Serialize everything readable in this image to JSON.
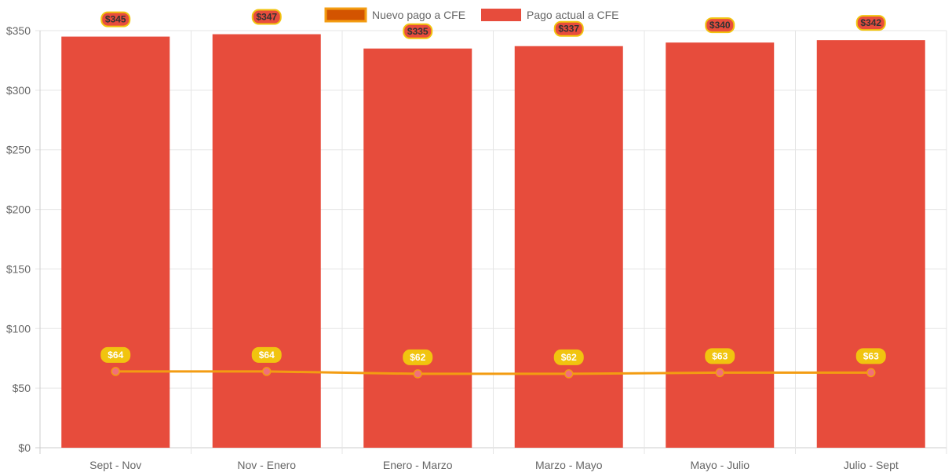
{
  "chart_data": {
    "type": "bar",
    "title": "",
    "categories": [
      "Sept - Nov",
      "Nov - Enero",
      "Enero - Marzo",
      "Marzo - Mayo",
      "Mayo - Julio",
      "Julio - Sept"
    ],
    "series": [
      {
        "name": "Nuevo pago a CFE",
        "type": "line",
        "values": [
          64,
          64,
          62,
          62,
          63,
          63
        ],
        "labels": [
          "$64",
          "$64",
          "$62",
          "$62",
          "$63",
          "$63"
        ],
        "color": "#f39c12",
        "fill": "#d35400",
        "point_color": "#f1707a",
        "label_bg": "#f1c40f"
      },
      {
        "name": "Pago actual a CFE",
        "type": "bar",
        "values": [
          345,
          347,
          335,
          337,
          340,
          342
        ],
        "labels": [
          "$345",
          "$347",
          "$335",
          "$337",
          "$340",
          "$342"
        ],
        "color": "#e74c3c",
        "label_bg": "#e74c3c",
        "label_border": "#f1c40f"
      }
    ],
    "yticks": [
      "$0",
      "$50",
      "$100",
      "$150",
      "$200",
      "$250",
      "$300",
      "$350"
    ],
    "ylim": [
      0,
      350
    ],
    "legend": "top",
    "grid": true
  }
}
